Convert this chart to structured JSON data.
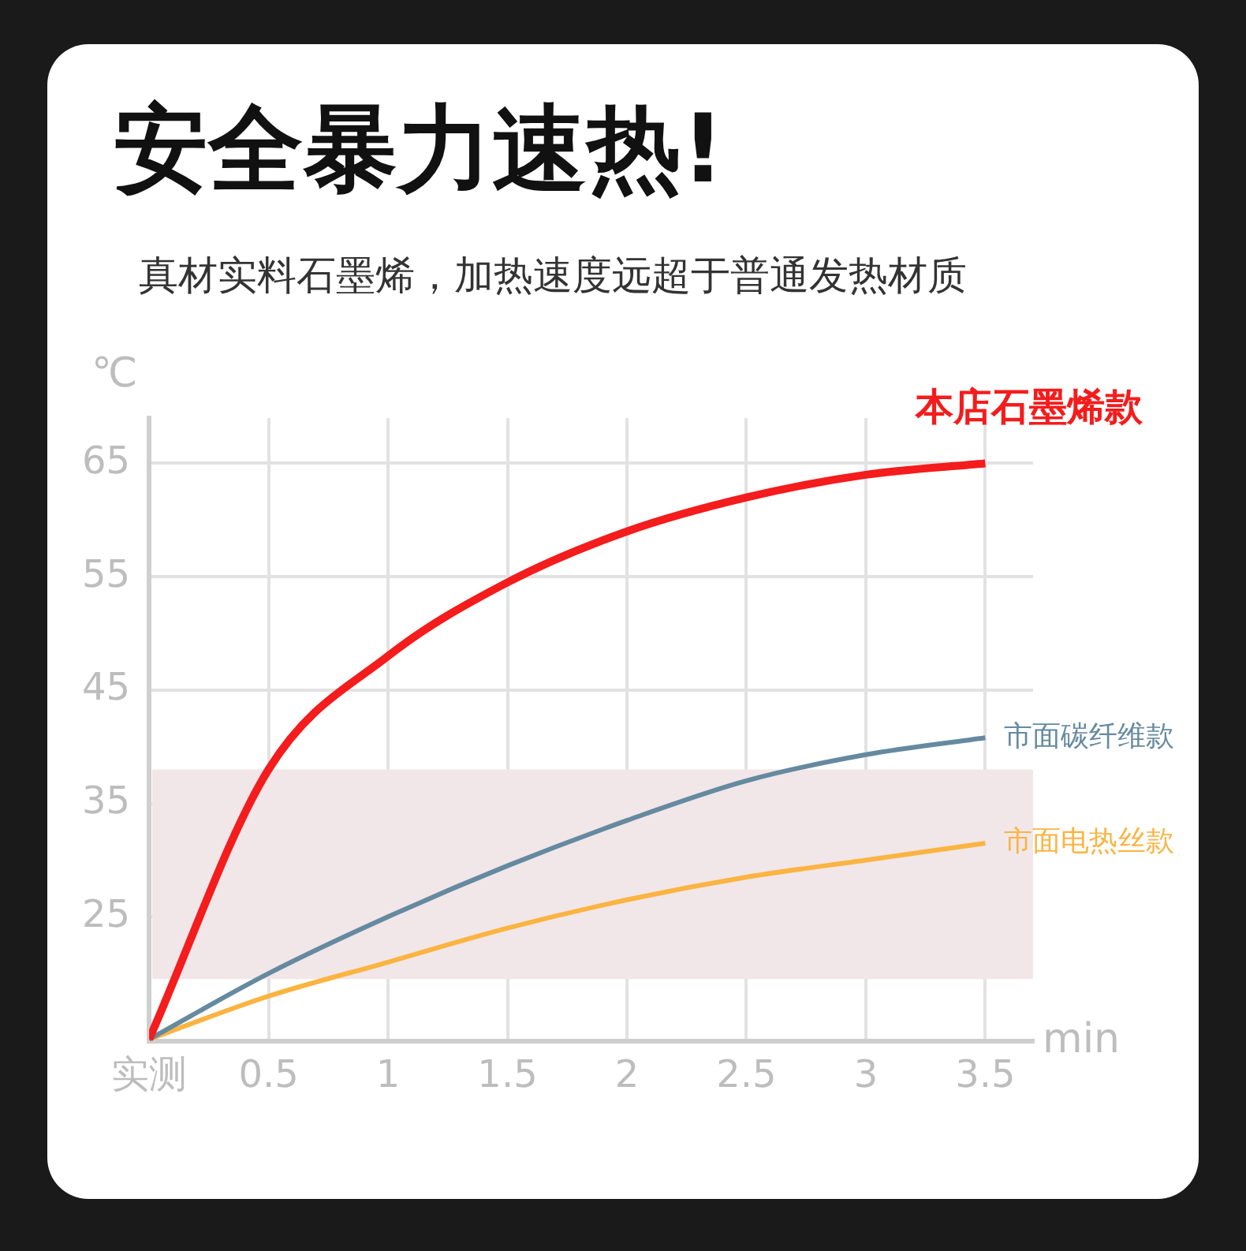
{
  "chart_data": {
    "type": "line",
    "title": "安全暴力速热!",
    "subtitle": "真材实料石墨烯，加热速度远超于普通发热材质",
    "xlabel": "min",
    "ylabel": "℃",
    "x": [
      0,
      0.5,
      1,
      1.5,
      2,
      2.5,
      3,
      3.5
    ],
    "series": [
      {
        "name": "本店石墨烯款",
        "color": "#f41c1c",
        "values": [
          14.2,
          38,
          48,
          54.5,
          59,
          62,
          64,
          65
        ]
      },
      {
        "name": "市面碳纤维款",
        "color": "#658aa0",
        "values": [
          14.2,
          20,
          25,
          29.5,
          33.5,
          37,
          39.3,
          40.8
        ]
      },
      {
        "name": "市面电热丝款",
        "color": "#fbb441",
        "values": [
          14.2,
          18,
          21,
          24,
          26.5,
          28.5,
          30,
          31.5
        ]
      }
    ],
    "xlim": [
      0,
      3.7
    ],
    "xticks": [
      {
        "value": 0,
        "label": "实测"
      },
      0.5,
      1,
      1.5,
      2,
      2.5,
      3,
      3.5
    ],
    "ylim": [
      14,
      69
    ],
    "yticks": [
      25,
      35,
      45,
      55,
      65
    ],
    "bands": [
      {
        "axis": "y",
        "from": 19.5,
        "to": 38,
        "color": "#f1e6e8"
      }
    ],
    "grid": true,
    "legend": false,
    "marker": "none",
    "line_style": "solid"
  }
}
